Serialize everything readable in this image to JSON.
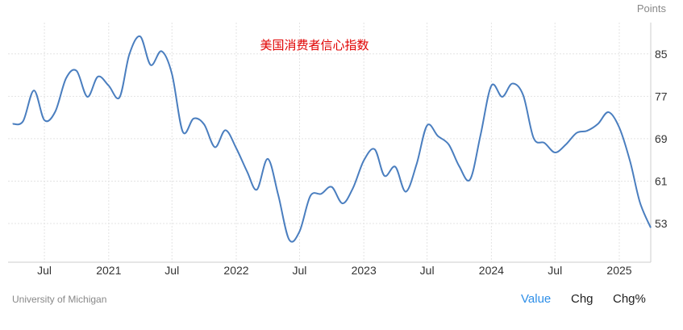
{
  "chart_data": {
    "type": "line",
    "title": "美国消费者信心指数",
    "ylabel": "Points",
    "ylim": [
      45.7,
      90.9
    ],
    "xlim": [
      "2020-03-19",
      "2025-04-01"
    ],
    "yticks": [
      53,
      61,
      69,
      77,
      85
    ],
    "xticks": [
      {
        "date": "2020-07-01",
        "label": "Jul"
      },
      {
        "date": "2021-01-01",
        "label": "2021"
      },
      {
        "date": "2021-07-01",
        "label": "Jul"
      },
      {
        "date": "2022-01-01",
        "label": "2022"
      },
      {
        "date": "2022-07-01",
        "label": "Jul"
      },
      {
        "date": "2023-01-01",
        "label": "2023"
      },
      {
        "date": "2023-07-01",
        "label": "Jul"
      },
      {
        "date": "2024-01-01",
        "label": "2024"
      },
      {
        "date": "2024-07-01",
        "label": "Jul"
      },
      {
        "date": "2025-01-01",
        "label": "2025"
      }
    ],
    "grid": true,
    "line_color": "#4a7ebf",
    "x": [
      "2020-04",
      "2020-05",
      "2020-06",
      "2020-07",
      "2020-08",
      "2020-09",
      "2020-10",
      "2020-11",
      "2020-12",
      "2021-01",
      "2021-02",
      "2021-03",
      "2021-04",
      "2021-05",
      "2021-06",
      "2021-07",
      "2021-08",
      "2021-09",
      "2021-10",
      "2021-11",
      "2021-12",
      "2022-01",
      "2022-02",
      "2022-03",
      "2022-04",
      "2022-05",
      "2022-06",
      "2022-07",
      "2022-08",
      "2022-09",
      "2022-10",
      "2022-11",
      "2022-12",
      "2023-01",
      "2023-02",
      "2023-03",
      "2023-04",
      "2023-05",
      "2023-06",
      "2023-07",
      "2023-08",
      "2023-09",
      "2023-10",
      "2023-11",
      "2023-12",
      "2024-01",
      "2024-02",
      "2024-03",
      "2024-04",
      "2024-05",
      "2024-06",
      "2024-07",
      "2024-08",
      "2024-09",
      "2024-10",
      "2024-11",
      "2024-12",
      "2025-01",
      "2025-02",
      "2025-03",
      "2025-04"
    ],
    "values": [
      71.8,
      72.3,
      78.1,
      72.5,
      74.1,
      80.4,
      81.8,
      76.9,
      80.7,
      79.0,
      76.8,
      84.9,
      88.3,
      82.9,
      85.5,
      81.2,
      70.3,
      72.8,
      71.7,
      67.4,
      70.6,
      67.2,
      62.8,
      59.4,
      65.2,
      58.4,
      50.0,
      51.5,
      58.2,
      58.6,
      59.9,
      56.8,
      59.7,
      64.9,
      67.0,
      62.0,
      63.7,
      59.0,
      64.2,
      71.5,
      69.5,
      67.9,
      63.8,
      61.3,
      69.7,
      79.0,
      76.9,
      79.4,
      77.2,
      69.1,
      68.2,
      66.4,
      67.9,
      70.1,
      70.5,
      71.8,
      74.0,
      71.1,
      64.7,
      57.0,
      52.2
    ]
  },
  "footer": {
    "source": "University of Michigan",
    "tabs": [
      {
        "label": "Value",
        "active": true
      },
      {
        "label": "Chg",
        "active": false
      },
      {
        "label": "Chg%",
        "active": false
      }
    ],
    "accent": "#2e8fe8"
  }
}
